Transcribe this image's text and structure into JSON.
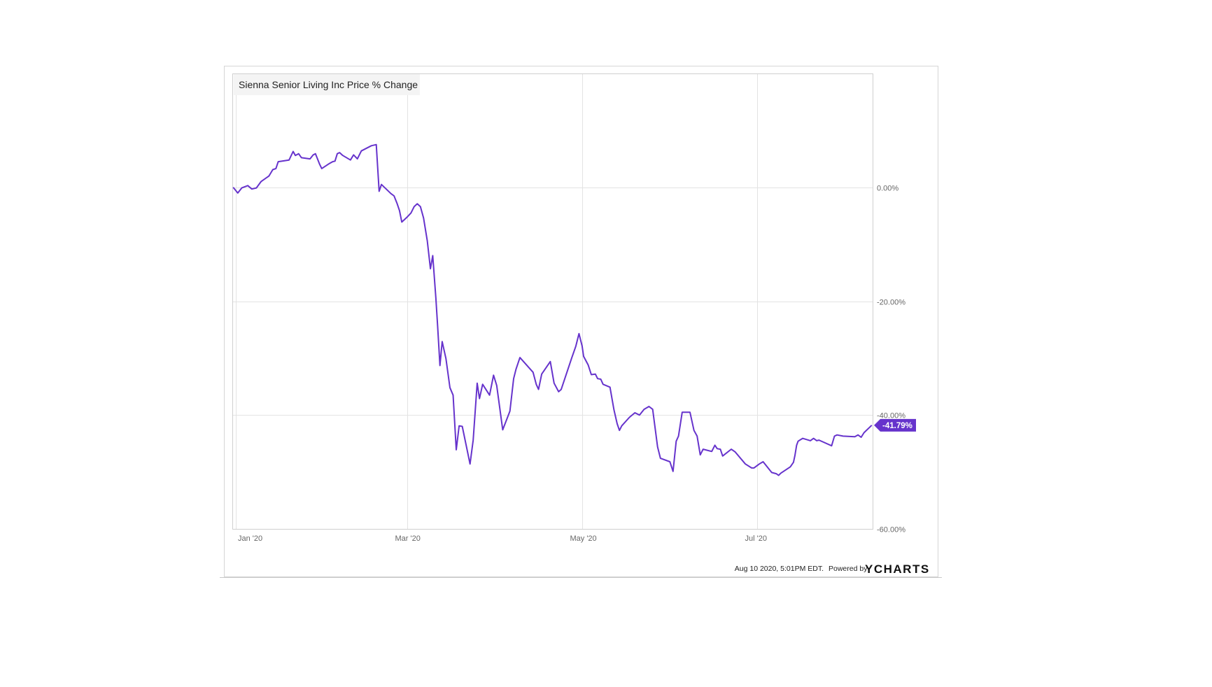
{
  "chart_data": {
    "type": "line",
    "title": "Sienna Senior Living Inc Price % Change",
    "x_unit": "days since 2020-01-01",
    "xlim": [
      -1.1,
      222.2
    ],
    "ylim": [
      -60,
      20
    ],
    "x_ticks": [
      {
        "value": 0,
        "label": "Jan '20"
      },
      {
        "value": 60,
        "label": "Mar '20"
      },
      {
        "value": 121,
        "label": "May '20"
      },
      {
        "value": 182,
        "label": "Jul '20"
      }
    ],
    "y_ticks": [
      {
        "value": 0,
        "label": "0.00%"
      },
      {
        "value": -20,
        "label": "-20.00%"
      },
      {
        "value": -40,
        "label": "-40.00%"
      },
      {
        "value": -60,
        "label": "-60.00%"
      }
    ],
    "grid": true,
    "series": [
      {
        "name": "Sienna Senior Living Inc Price % Change",
        "color": "#6633cc",
        "last_value_label": "-41.79%",
        "x": [
          -0.8,
          0.8,
          2.2,
          4.3,
          5.7,
          7.3,
          8.9,
          11.7,
          13.0,
          14.1,
          14.9,
          18.7,
          20.1,
          20.9,
          22.0,
          23.0,
          26.0,
          27.1,
          27.9,
          29.3,
          30.1,
          32.8,
          33.9,
          34.7,
          35.5,
          36.3,
          37.4,
          40.1,
          41.2,
          42.5,
          43.9,
          47.4,
          49.1,
          50.1,
          50.9,
          54.2,
          55.3,
          56.4,
          57.2,
          58.0,
          59.9,
          61.2,
          62.3,
          63.4,
          64.5,
          65.6,
          66.9,
          68.0,
          68.8,
          69.9,
          70.5,
          71.3,
          72.1,
          73.4,
          74.8,
          75.9,
          77.0,
          78.0,
          79.1,
          81.8,
          82.9,
          84.3,
          85.1,
          86.2,
          88.6,
          90.0,
          91.1,
          93.2,
          95.7,
          97.0,
          97.8,
          99.2,
          103.8,
          104.9,
          105.7,
          106.8,
          109.8,
          111.1,
          112.7,
          113.6,
          117.3,
          118.7,
          119.8,
          120.9,
          121.4,
          123.0,
          124.1,
          125.5,
          126.3,
          127.4,
          128.2,
          130.6,
          132.0,
          133.1,
          133.9,
          134.7,
          137.4,
          139.3,
          140.9,
          142.5,
          144.2,
          145.5,
          147.2,
          148.2,
          151.5,
          152.6,
          153.7,
          154.5,
          155.8,
          158.5,
          159.9,
          161.0,
          162.1,
          163.1,
          166.1,
          167.2,
          168.0,
          169.1,
          169.9,
          172.9,
          174.3,
          177.8,
          180.0,
          180.8,
          182.7,
          184.0,
          187.0,
          188.6,
          189.4,
          190.2,
          193.5,
          194.6,
          195.1,
          195.7,
          196.2,
          197.8,
          200.5,
          201.6,
          202.7,
          203.5,
          207.9,
          208.9,
          209.8,
          211.9,
          216.0,
          217.1,
          218.2,
          219.2,
          221.9
        ],
        "y": [
          0,
          -1.0,
          -0.1,
          0.3,
          -0.3,
          -0.1,
          1.0,
          2.0,
          3.1,
          3.3,
          4.5,
          4.8,
          6.3,
          5.6,
          5.9,
          5.2,
          5.0,
          5.7,
          5.9,
          4.1,
          3.3,
          4.2,
          4.5,
          4.6,
          5.9,
          6.1,
          5.6,
          4.8,
          5.7,
          5.0,
          6.4,
          7.3,
          7.5,
          -0.7,
          0.5,
          -1.1,
          -1.5,
          -2.9,
          -4.1,
          -6.1,
          -5.2,
          -4.5,
          -3.4,
          -2.9,
          -3.4,
          -5.4,
          -9.4,
          -14.3,
          -12.0,
          -19.5,
          -24.4,
          -31.3,
          -27.1,
          -30.1,
          -35.2,
          -36.5,
          -46.1,
          -41.9,
          -42.0,
          -48.6,
          -44.4,
          -34.4,
          -37.1,
          -34.6,
          -36.5,
          -33.0,
          -34.8,
          -42.6,
          -39.3,
          -33.6,
          -32.0,
          -29.9,
          -32.5,
          -34.6,
          -35.5,
          -32.8,
          -30.6,
          -34.4,
          -35.9,
          -35.5,
          -29.9,
          -27.9,
          -25.7,
          -27.9,
          -29.7,
          -31.2,
          -32.9,
          -32.8,
          -33.6,
          -33.7,
          -34.6,
          -35.1,
          -39.1,
          -41.5,
          -42.7,
          -41.9,
          -40.4,
          -39.6,
          -40.0,
          -39.0,
          -38.5,
          -39.0,
          -45.6,
          -47.6,
          -48.2,
          -49.9,
          -44.6,
          -43.7,
          -39.5,
          -39.5,
          -42.7,
          -43.7,
          -47.0,
          -46.0,
          -46.4,
          -45.3,
          -45.9,
          -46.0,
          -47.2,
          -46.0,
          -46.5,
          -48.6,
          -49.3,
          -49.3,
          -48.6,
          -48.2,
          -50.1,
          -50.3,
          -50.6,
          -50.2,
          -49.1,
          -48.3,
          -47.1,
          -45.3,
          -44.6,
          -44.1,
          -44.5,
          -44.1,
          -44.5,
          -44.4,
          -45.4,
          -43.7,
          -43.5,
          -43.7,
          -43.8,
          -43.5,
          -43.9,
          -43.1,
          -41.79
        ]
      }
    ]
  },
  "footer": {
    "timestamp": "Aug 10 2020, 5:01PM EDT.",
    "powered_by": "Powered by",
    "brand": "YCHARTS",
    "brand_accent": "#7b4fd6"
  }
}
